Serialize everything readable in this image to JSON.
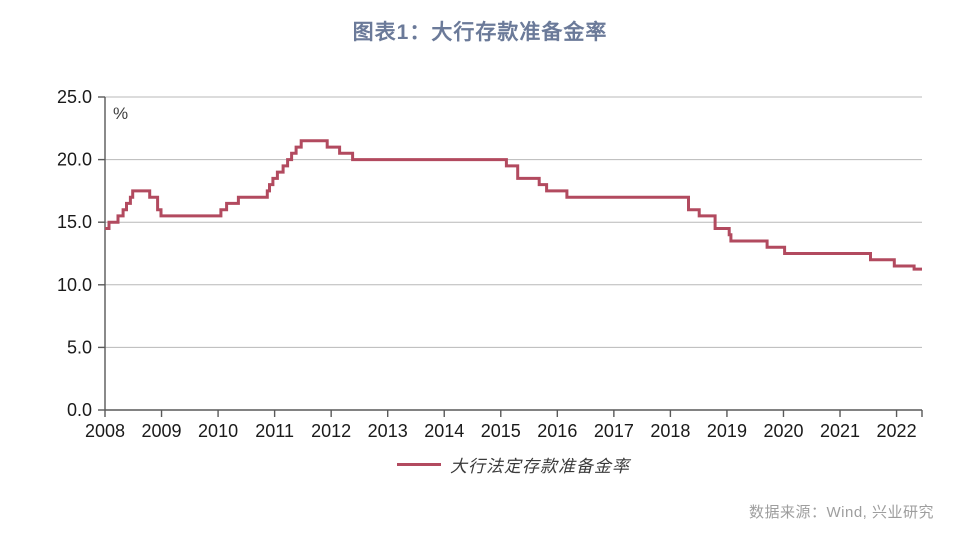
{
  "title": "图表1：大行存款准备金率",
  "legend": {
    "label": "大行法定存款准备金率"
  },
  "source": "数据来源：Wind, 兴业研究",
  "colors": {
    "line": "#b24a5f",
    "title": "#6b7a99",
    "axis": "#595959",
    "grid": "#b8b8b8",
    "tick_label": "#1a1a1a",
    "source_text": "#9e9e9e"
  },
  "chart_data": {
    "type": "line",
    "style": "step-after",
    "title": "图表1：大行存款准备金率",
    "xlabel": "",
    "ylabel": "%",
    "legend_entries": [
      "大行法定存款准备金率"
    ],
    "legend_position": "bottom",
    "grid": "horizontal",
    "xlim": [
      2008,
      2022.45
    ],
    "ylim": [
      0,
      25
    ],
    "x_tick_values": [
      2008,
      2009,
      2010,
      2011,
      2012,
      2013,
      2014,
      2015,
      2016,
      2017,
      2018,
      2019,
      2020,
      2021,
      2022
    ],
    "x_tick_labels": [
      "2008",
      "2009",
      "2010",
      "2011",
      "2012",
      "2013",
      "2014",
      "2015",
      "2016",
      "2017",
      "2018",
      "2019",
      "2020",
      "2021",
      "2022"
    ],
    "y_tick_values": [
      0,
      5,
      10,
      15,
      20,
      25
    ],
    "y_tick_labels": [
      "0.0",
      "5.0",
      "10.0",
      "15.0",
      "20.0",
      "25.0"
    ],
    "series": [
      {
        "name": "大行法定存款准备金率",
        "unit": "%",
        "step_points": [
          [
            2008.0,
            14.5
          ],
          [
            2008.07,
            15.0
          ],
          [
            2008.23,
            15.5
          ],
          [
            2008.32,
            16.0
          ],
          [
            2008.38,
            16.5
          ],
          [
            2008.45,
            17.0
          ],
          [
            2008.49,
            17.5
          ],
          [
            2008.79,
            17.0
          ],
          [
            2008.93,
            16.0
          ],
          [
            2008.99,
            15.5
          ],
          [
            2010.05,
            16.0
          ],
          [
            2010.15,
            16.5
          ],
          [
            2010.36,
            17.0
          ],
          [
            2010.87,
            17.5
          ],
          [
            2010.91,
            18.0
          ],
          [
            2010.97,
            18.5
          ],
          [
            2011.05,
            19.0
          ],
          [
            2011.15,
            19.5
          ],
          [
            2011.23,
            20.0
          ],
          [
            2011.3,
            20.5
          ],
          [
            2011.38,
            21.0
          ],
          [
            2011.47,
            21.5
          ],
          [
            2011.93,
            21.0
          ],
          [
            2012.15,
            20.5
          ],
          [
            2012.38,
            20.0
          ],
          [
            2015.1,
            19.5
          ],
          [
            2015.3,
            18.5
          ],
          [
            2015.68,
            18.0
          ],
          [
            2015.81,
            17.5
          ],
          [
            2016.17,
            17.0
          ],
          [
            2018.32,
            16.0
          ],
          [
            2018.51,
            15.5
          ],
          [
            2018.79,
            14.5
          ],
          [
            2019.04,
            14.0
          ],
          [
            2019.07,
            13.5
          ],
          [
            2019.71,
            13.0
          ],
          [
            2020.02,
            12.5
          ],
          [
            2021.54,
            12.0
          ],
          [
            2021.96,
            11.5
          ],
          [
            2022.31,
            11.25
          ]
        ]
      }
    ]
  }
}
